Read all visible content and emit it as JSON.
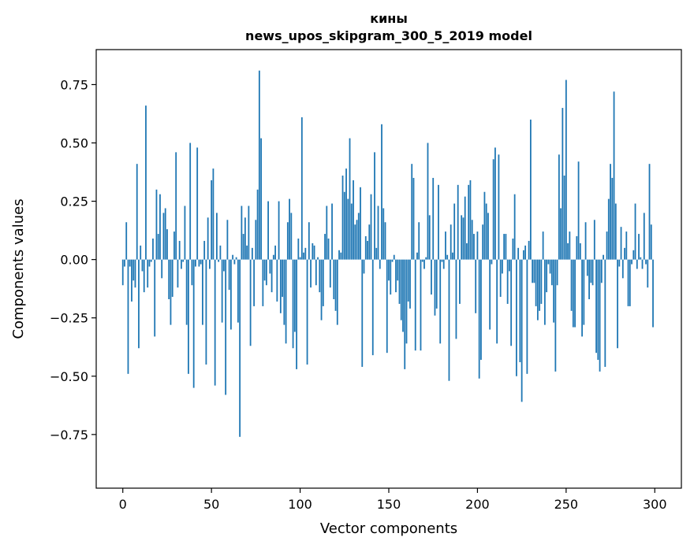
{
  "chart_data": {
    "type": "bar",
    "title": "кины",
    "subtitle": "news_upos_skipgram_300_5_2019 model",
    "xlabel": "Vector components",
    "ylabel": "Components values",
    "xlim": [
      -15,
      315
    ],
    "ylim": [
      -0.98,
      0.9
    ],
    "xticks": [
      0,
      50,
      100,
      150,
      200,
      250,
      300
    ],
    "xtick_labels": [
      "0",
      "50",
      "100",
      "150",
      "200",
      "250",
      "300"
    ],
    "yticks": [
      -0.75,
      -0.5,
      -0.25,
      0.0,
      0.25,
      0.5,
      0.75
    ],
    "ytick_labels": [
      "−0.75",
      "−0.50",
      "−0.25",
      "0.00",
      "0.25",
      "0.50",
      "0.75"
    ],
    "grid": false,
    "bar_color": "#1f77b4",
    "x": "indices 0..299",
    "values": [
      -0.11,
      -0.03,
      0.16,
      -0.49,
      -0.03,
      -0.18,
      -0.09,
      -0.12,
      0.41,
      -0.38,
      0.06,
      -0.05,
      -0.14,
      0.66,
      -0.12,
      -0.03,
      -0.01,
      0.09,
      -0.33,
      0.3,
      0.11,
      0.28,
      -0.08,
      0.2,
      0.22,
      0.13,
      -0.17,
      -0.28,
      -0.16,
      0.12,
      0.46,
      -0.12,
      0.08,
      -0.04,
      -0.01,
      0.23,
      -0.28,
      -0.49,
      0.5,
      -0.11,
      -0.55,
      -0.03,
      0.48,
      -0.03,
      -0.02,
      -0.28,
      0.08,
      -0.45,
      0.18,
      -0.04,
      0.34,
      0.39,
      -0.54,
      0.2,
      -0.01,
      0.06,
      -0.27,
      -0.05,
      -0.58,
      0.17,
      -0.13,
      -0.3,
      0.02,
      -0.02,
      0.01,
      -0.27,
      -0.76,
      0.23,
      0.11,
      0.18,
      0.06,
      0.23,
      -0.37,
      0.05,
      -0.2,
      0.17,
      0.3,
      0.81,
      0.52,
      -0.2,
      -0.09,
      -0.11,
      0.25,
      -0.06,
      -0.14,
      0.02,
      0.06,
      -0.18,
      0.25,
      -0.23,
      -0.16,
      -0.28,
      -0.36,
      0.16,
      0.26,
      0.2,
      -0.38,
      -0.31,
      -0.47,
      0.09,
      0.01,
      0.61,
      0.03,
      0.05,
      -0.45,
      0.16,
      -0.12,
      0.07,
      0.06,
      -0.11,
      0.01,
      -0.14,
      -0.26,
      -0.2,
      0.11,
      0.23,
      0.09,
      -0.12,
      0.24,
      -0.17,
      -0.22,
      -0.28,
      0.04,
      0.03,
      0.36,
      0.29,
      0.39,
      0.26,
      0.52,
      0.24,
      0.34,
      0.15,
      0.17,
      0.2,
      0.31,
      -0.46,
      -0.06,
      0.1,
      0.08,
      0.15,
      0.28,
      -0.41,
      0.46,
      0.05,
      0.23,
      -0.04,
      0.58,
      0.22,
      0.16,
      -0.4,
      -0.09,
      -0.15,
      -0.01,
      0.02,
      -0.14,
      -0.09,
      -0.19,
      -0.26,
      -0.31,
      -0.47,
      -0.36,
      -0.18,
      -0.21,
      0.41,
      0.35,
      -0.39,
      0.03,
      0.16,
      -0.39,
      -0.01,
      -0.04,
      0.01,
      0.5,
      0.19,
      -0.15,
      0.35,
      -0.24,
      -0.21,
      0.32,
      -0.36,
      -0.01,
      -0.04,
      0.12,
      0.02,
      -0.52,
      0.15,
      0.03,
      0.24,
      -0.34,
      0.32,
      -0.19,
      0.19,
      0.18,
      0.27,
      0.07,
      0.32,
      0.34,
      0.17,
      0.11,
      -0.23,
      0.12,
      -0.51,
      -0.43,
      0.15,
      0.29,
      0.24,
      0.2,
      -0.3,
      -0.02,
      0.43,
      0.48,
      -0.36,
      0.45,
      -0.16,
      -0.06,
      0.11,
      0.11,
      -0.19,
      -0.05,
      -0.37,
      0.09,
      0.28,
      -0.5,
      0.05,
      -0.44,
      -0.61,
      0.04,
      0.06,
      -0.49,
      0.08,
      0.6,
      -0.1,
      -0.1,
      -0.2,
      -0.26,
      -0.22,
      -0.19,
      0.12,
      -0.28,
      -0.14,
      -0.02,
      -0.06,
      -0.11,
      -0.27,
      -0.48,
      -0.11,
      0.45,
      0.22,
      0.65,
      0.36,
      0.77,
      0.07,
      0.12,
      -0.22,
      -0.29,
      -0.29,
      0.1,
      0.42,
      0.07,
      -0.33,
      -0.28,
      0.16,
      -0.07,
      -0.17,
      -0.1,
      -0.11,
      0.17,
      -0.4,
      -0.43,
      -0.48,
      -0.1,
      0.02,
      -0.46,
      0.12,
      0.26,
      0.41,
      0.35,
      0.72,
      0.24,
      -0.38,
      -0.03,
      0.14,
      -0.08,
      0.05,
      0.12,
      -0.2,
      -0.2,
      -0.02,
      0.04,
      0.24,
      -0.04,
      0.11,
      0.01,
      -0.04,
      0.2,
      -0.02,
      -0.12,
      0.41,
      0.15,
      -0.29
    ]
  }
}
